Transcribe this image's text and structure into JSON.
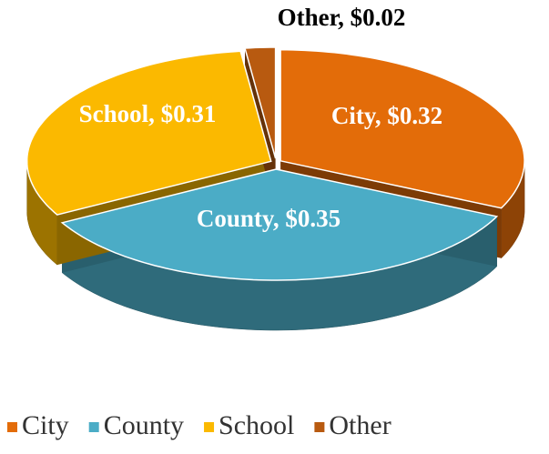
{
  "chart_data": {
    "type": "pie",
    "categories": [
      "City",
      "County",
      "School",
      "Other"
    ],
    "values": [
      0.32,
      0.35,
      0.31,
      0.02
    ],
    "value_labels": [
      "City,  $0.32",
      "County,  $0.35",
      "School,  $0.31",
      "Other,  $0.02"
    ],
    "colors": [
      "#e36c09",
      "#4bacc6",
      "#fbb900",
      "#b85a10"
    ],
    "legend": "bottom"
  }
}
